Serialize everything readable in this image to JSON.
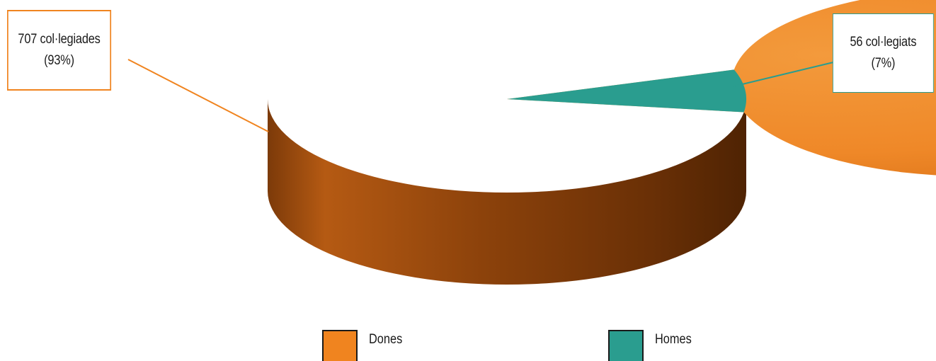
{
  "chart_data": {
    "type": "pie",
    "title": "",
    "style": "3d",
    "categories": [
      "Dones",
      "Homes"
    ],
    "values": [
      707,
      56
    ],
    "percentages": [
      93,
      7
    ],
    "colors": [
      "#f0841f",
      "#2a9d8f"
    ],
    "data_labels": [
      {
        "line1": "707  col·legiades",
        "line2": "(93%)"
      },
      {
        "line1": "56  col·legiats",
        "line2": "(7%)"
      }
    ],
    "legend": {
      "position": "bottom",
      "items": [
        {
          "label": "Dones",
          "color": "#f0841f"
        },
        {
          "label": "Homes",
          "color": "#2a9d8f"
        }
      ]
    }
  }
}
